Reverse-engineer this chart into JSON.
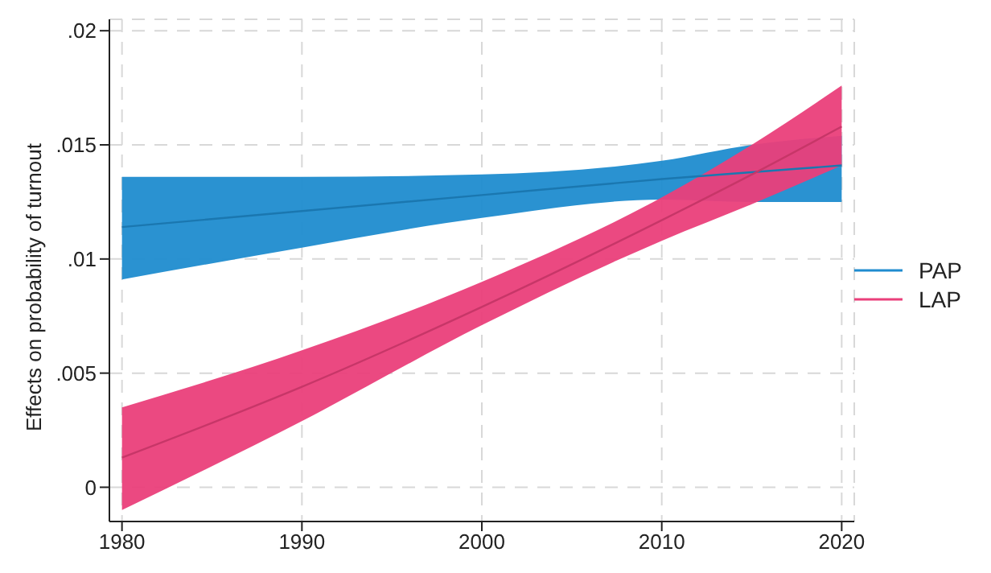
{
  "chart_data": {
    "type": "line",
    "ylabel": "Effects on probability of turnout",
    "x": [
      1980,
      1990,
      2000,
      2010,
      2015,
      2020
    ],
    "series": [
      {
        "name": "PAP",
        "color": "#1f8ccf",
        "values": [
          0.0114,
          0.0121,
          0.0128,
          0.0135,
          0.0138,
          0.0141
        ],
        "lower": [
          0.0091,
          0.0105,
          0.0118,
          0.0126,
          0.0125,
          0.0125
        ],
        "upper": [
          0.0136,
          0.0136,
          0.0137,
          0.0143,
          0.015,
          0.0154
        ]
      },
      {
        "name": "LAP",
        "color": "#ea3f7a",
        "values": [
          0.0013,
          0.0044,
          0.0079,
          0.0117,
          0.0137,
          0.0158
        ],
        "lower": [
          -0.001,
          0.0029,
          0.0071,
          0.0108,
          0.0124,
          0.0141
        ],
        "upper": [
          0.0035,
          0.006,
          0.009,
          0.0127,
          0.015,
          0.0176
        ]
      }
    ],
    "xlim": [
      1979.3,
      2020.7
    ],
    "xticks": [
      1980,
      1990,
      2000,
      2010,
      2020
    ],
    "ylim": [
      -0.0015,
      0.0205
    ],
    "yticks": [
      {
        "value": 0,
        "label": "0"
      },
      {
        "value": 0.005,
        "label": ".005"
      },
      {
        "value": 0.01,
        "label": ".01"
      },
      {
        "value": 0.015,
        "label": ".015"
      },
      {
        "value": 0.02,
        "label": ".02"
      }
    ],
    "grid": true,
    "legend": "right",
    "line_style": "solid",
    "marker": "none"
  }
}
